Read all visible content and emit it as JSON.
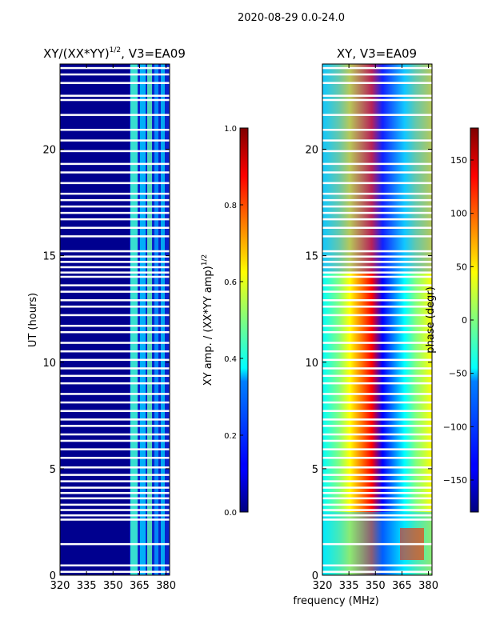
{
  "figure": {
    "suptitle": "2020-08-29 0.0-24.0",
    "xlabel": "frequency (MHz)"
  },
  "chart_data": [
    {
      "type": "heatmap",
      "title": "XY/(XX*YY)",
      "title_exp": "1/2",
      "title_tail": ", V3=EA09",
      "ylabel": "UT (hours)",
      "xlim": [
        320,
        382
      ],
      "ylim": [
        0,
        24
      ],
      "xticks": [
        320,
        335,
        350,
        365,
        380
      ],
      "yticks": [
        0,
        5,
        10,
        15,
        20
      ],
      "colorbar": {
        "label": "XY amp. / (XX*YY amp)",
        "label_exp": "1/2",
        "range": [
          0.0,
          1.0
        ],
        "ticks": [
          "0.0",
          "0.2",
          "0.4",
          "0.6",
          "0.8",
          "1.0"
        ],
        "tick_values": [
          0.0,
          0.2,
          0.4,
          0.6,
          0.8,
          1.0
        ]
      },
      "flagged_ut_hours": [
        0.15,
        0.45,
        1.45,
        2.6,
        2.8,
        3.05,
        3.3,
        3.6,
        3.85,
        4.1,
        4.4,
        4.7,
        5.05,
        5.5,
        5.9,
        6.3,
        6.6,
        7.0,
        7.3,
        7.7,
        8.1,
        8.5,
        9.0,
        9.35,
        9.7,
        10.1,
        10.5,
        10.9,
        11.4,
        11.7,
        12.2,
        12.6,
        12.9,
        13.3,
        13.6,
        14.0,
        14.2,
        14.45,
        14.7,
        14.95,
        15.2,
        15.9,
        16.3,
        16.7,
        17.0,
        17.3,
        17.6,
        17.9,
        18.4,
        18.9,
        19.3,
        19.9,
        20.4,
        20.9,
        21.6,
        22.3,
        22.5,
        23.1,
        23.5,
        23.8
      ]
    },
    {
      "type": "heatmap",
      "title": "XY, V3=EA09",
      "ylabel": "",
      "xlim": [
        320,
        382
      ],
      "ylim": [
        0,
        24
      ],
      "xticks": [
        320,
        335,
        350,
        365,
        380
      ],
      "yticks": [
        0,
        5,
        10,
        15,
        20
      ],
      "colorbar": {
        "label": "phase (degr)",
        "range": [
          -180,
          180
        ],
        "ticks": [
          "−150",
          "−100",
          "−50",
          "0",
          "50",
          "100",
          "150"
        ],
        "tick_values": [
          -150,
          -100,
          -50,
          0,
          50,
          100,
          150
        ]
      },
      "flagged_ut_hours": [
        0.15,
        0.45,
        1.45,
        2.6,
        2.8,
        3.05,
        3.3,
        3.6,
        3.85,
        4.1,
        4.4,
        4.7,
        5.05,
        5.5,
        5.9,
        6.3,
        6.6,
        7.0,
        7.3,
        7.7,
        8.1,
        8.5,
        9.0,
        9.35,
        9.7,
        10.1,
        10.5,
        10.9,
        11.4,
        11.7,
        12.2,
        12.6,
        12.9,
        13.3,
        13.6,
        14.0,
        14.2,
        14.45,
        14.7,
        14.95,
        15.2,
        15.9,
        16.3,
        16.7,
        17.0,
        17.3,
        17.6,
        17.9,
        18.4,
        18.9,
        19.3,
        19.9,
        20.4,
        20.9,
        21.6,
        22.3,
        22.5,
        23.1,
        23.5,
        23.8
      ]
    }
  ]
}
